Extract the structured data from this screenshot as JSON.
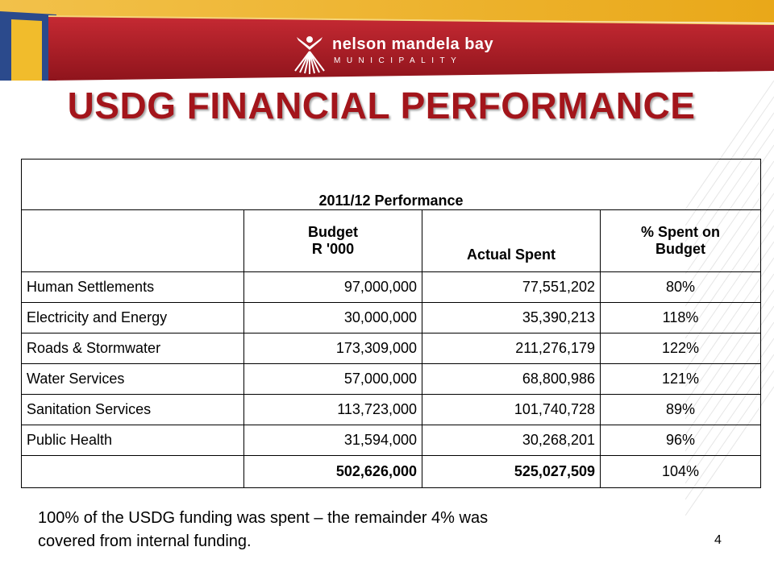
{
  "header": {
    "logo_line1": "nelson mandela bay",
    "logo_line2": "MUNICIPALITY"
  },
  "title": "USDG FINANCIAL PERFORMANCE",
  "table": {
    "caption": "2011/12 Performance",
    "headers": {
      "col1": "",
      "budget_line1": "Budget",
      "budget_line2": "R '000",
      "actual": "Actual Spent",
      "pct_line1": "% Spent on",
      "pct_line2": "Budget"
    },
    "rows": [
      {
        "name": "Human Settlements",
        "budget": "97,000,000",
        "actual": "77,551,202",
        "pct": "80%"
      },
      {
        "name": "Electricity and Energy",
        "budget": "30,000,000",
        "actual": "35,390,213",
        "pct": "118%"
      },
      {
        "name": "Roads & Stormwater",
        "budget": "173,309,000",
        "actual": "211,276,179",
        "pct": "122%"
      },
      {
        "name": "Water Services",
        "budget": "57,000,000",
        "actual": "68,800,986",
        "pct": "121%"
      },
      {
        "name": "Sanitation Services",
        "budget": "113,723,000",
        "actual": "101,740,728",
        "pct": "89%"
      },
      {
        "name": "Public Health",
        "budget": "31,594,000",
        "actual": "30,268,201",
        "pct": "96%"
      }
    ],
    "total": {
      "name": "",
      "budget": "502,626,000",
      "actual": "525,027,509",
      "pct": "104%"
    }
  },
  "note_line1": "100% of the USDG funding was spent – the remainder 4% was",
  "note_line2": "covered from internal funding.",
  "page_number": "4",
  "colors": {
    "title_red": "#a3151b",
    "banner_red": "#b3202a",
    "banner_yellow": "#f0b71e",
    "banner_blue": "#2b4a8c"
  }
}
